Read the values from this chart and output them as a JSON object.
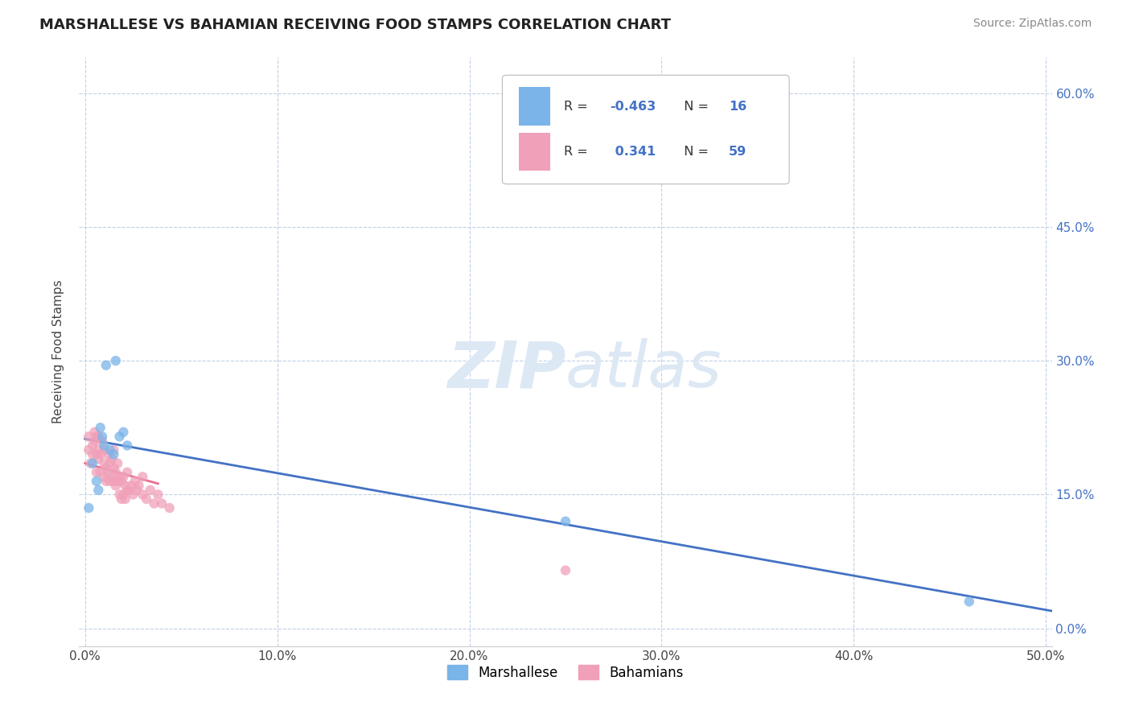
{
  "title": "MARSHALLESE VS BAHAMIAN RECEIVING FOOD STAMPS CORRELATION CHART",
  "source_text": "Source: ZipAtlas.com",
  "ylabel": "Receiving Food Stamps",
  "legend_label1": "Marshallese",
  "legend_label2": "Bahamians",
  "R1": -0.463,
  "N1": 16,
  "R2": 0.341,
  "N2": 59,
  "xlim": [
    -0.003,
    0.503
  ],
  "ylim": [
    -0.02,
    0.64
  ],
  "xticks": [
    0.0,
    0.1,
    0.2,
    0.3,
    0.4,
    0.5
  ],
  "xtick_labels": [
    "0.0%",
    "10.0%",
    "20.0%",
    "30.0%",
    "40.0%",
    "50.0%"
  ],
  "yticks": [
    0.0,
    0.15,
    0.3,
    0.45,
    0.6
  ],
  "ytick_labels_right": [
    "0.0%",
    "15.0%",
    "30.0%",
    "45.0%",
    "60.0%"
  ],
  "color_marshallese": "#7ab4e8",
  "color_bahamians": "#f0a0b8",
  "color_line_marshallese": "#4472c4",
  "color_line_bahamians": "#e87090",
  "background_color": "#ffffff",
  "grid_color": "#c0d0e8",
  "watermark_color": "#dce8f4",
  "title_fontsize": 13,
  "axis_fontsize": 11,
  "tick_fontsize": 11,
  "source_fontsize": 10,
  "marshallese_x": [
    0.002,
    0.004,
    0.006,
    0.007,
    0.008,
    0.009,
    0.01,
    0.011,
    0.013,
    0.015,
    0.016,
    0.018,
    0.02,
    0.022,
    0.25,
    0.46
  ],
  "marshallese_y": [
    0.135,
    0.185,
    0.165,
    0.155,
    0.225,
    0.215,
    0.205,
    0.295,
    0.2,
    0.195,
    0.3,
    0.215,
    0.22,
    0.205,
    0.12,
    0.03
  ],
  "bahamians_x": [
    0.002,
    0.002,
    0.003,
    0.004,
    0.004,
    0.005,
    0.005,
    0.006,
    0.006,
    0.006,
    0.007,
    0.007,
    0.007,
    0.008,
    0.008,
    0.009,
    0.01,
    0.01,
    0.01,
    0.011,
    0.011,
    0.012,
    0.012,
    0.013,
    0.013,
    0.014,
    0.014,
    0.015,
    0.015,
    0.015,
    0.016,
    0.016,
    0.017,
    0.017,
    0.018,
    0.018,
    0.019,
    0.019,
    0.02,
    0.02,
    0.021,
    0.021,
    0.022,
    0.022,
    0.023,
    0.024,
    0.025,
    0.026,
    0.027,
    0.028,
    0.03,
    0.03,
    0.032,
    0.034,
    0.036,
    0.038,
    0.04,
    0.044,
    0.25
  ],
  "bahamians_y": [
    0.2,
    0.215,
    0.185,
    0.195,
    0.205,
    0.21,
    0.22,
    0.175,
    0.195,
    0.215,
    0.19,
    0.2,
    0.215,
    0.175,
    0.195,
    0.21,
    0.17,
    0.185,
    0.2,
    0.165,
    0.18,
    0.175,
    0.195,
    0.165,
    0.185,
    0.17,
    0.19,
    0.165,
    0.18,
    0.2,
    0.16,
    0.175,
    0.165,
    0.185,
    0.15,
    0.17,
    0.145,
    0.165,
    0.15,
    0.17,
    0.145,
    0.16,
    0.155,
    0.175,
    0.155,
    0.16,
    0.15,
    0.165,
    0.155,
    0.16,
    0.15,
    0.17,
    0.145,
    0.155,
    0.14,
    0.15,
    0.14,
    0.135,
    0.065
  ]
}
